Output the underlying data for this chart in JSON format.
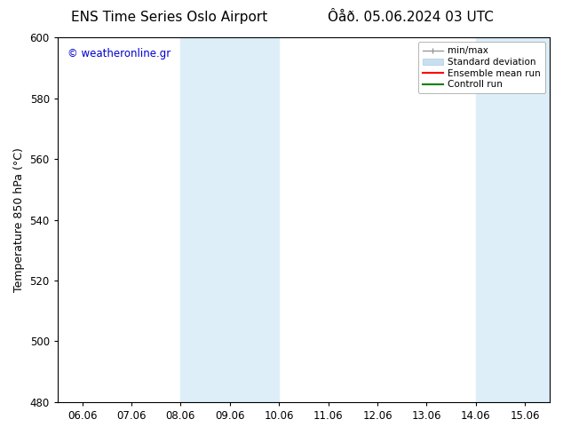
{
  "title_left": "ENS Time Series Oslo Airport",
  "title_right": "Ôåð. 05.06.2024 03 UTC",
  "ylabel": "Temperature 850 hPa (°C)",
  "xlabel_ticks": [
    "06.06",
    "07.06",
    "08.06",
    "09.06",
    "10.06",
    "11.06",
    "12.06",
    "13.06",
    "14.06",
    "15.06"
  ],
  "ylim": [
    480,
    600
  ],
  "yticks": [
    480,
    500,
    520,
    540,
    560,
    580,
    600
  ],
  "background_color": "#ffffff",
  "plot_bg_color": "#ffffff",
  "shaded_regions": [
    {
      "xstart": 2,
      "xend": 4,
      "color": "#ddeef8"
    },
    {
      "xstart": 8,
      "xend": 9.5,
      "color": "#ddeef8"
    }
  ],
  "watermark_text": "© weatheronline.gr",
  "watermark_color": "#0000cc",
  "legend_items": [
    {
      "label": "min/max",
      "color": "#999999",
      "lw": 1.0
    },
    {
      "label": "Standard deviation",
      "color": "#c8dff0",
      "lw": 7
    },
    {
      "label": "Ensemble mean run",
      "color": "#ff0000",
      "lw": 1.5
    },
    {
      "label": "Controll run",
      "color": "#008000",
      "lw": 1.5
    }
  ],
  "title_fontsize": 11,
  "axis_fontsize": 9,
  "tick_fontsize": 8.5
}
